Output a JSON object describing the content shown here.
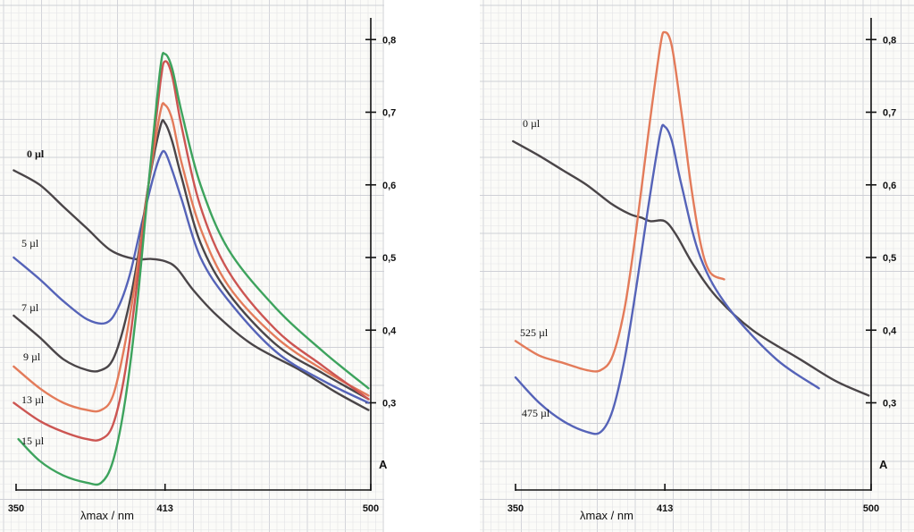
{
  "colors": {
    "dark": "#4a4548",
    "blue": "#5563b8",
    "red": "#cc5552",
    "orange": "#e37b5a",
    "green": "#3da35d"
  },
  "chart_data": [
    {
      "type": "line",
      "xlabel": "λmax / nm",
      "ylabel": "A",
      "xlim": [
        350,
        500
      ],
      "ylim": [
        0.18,
        0.82
      ],
      "x_ticks": [
        350,
        413,
        500
      ],
      "x_tick_labels": [
        "350",
        "413",
        "500"
      ],
      "y_ticks": [
        0.3,
        0.4,
        0.5,
        0.6,
        0.7,
        0.8
      ],
      "y_tick_labels": [
        "0,3",
        "0,4",
        "0,5",
        "0,6",
        "0,7",
        "0,8"
      ],
      "series": [
        {
          "name": "0 µl",
          "color_key": "dark",
          "bold": true,
          "x": [
            349,
            360,
            370,
            380,
            390,
            400,
            407,
            413,
            418,
            425,
            435,
            450,
            470,
            485,
            499
          ],
          "y": [
            0.62,
            0.6,
            0.57,
            0.54,
            0.51,
            0.498,
            0.498,
            0.495,
            0.485,
            0.455,
            0.42,
            0.38,
            0.345,
            0.315,
            0.29
          ]
        },
        {
          "name": "5 µl",
          "color_key": "blue",
          "x": [
            349,
            360,
            370,
            380,
            388,
            393,
            398,
            403,
            408,
            411,
            413,
            416,
            420,
            428,
            440,
            460,
            480,
            499
          ],
          "y": [
            0.5,
            0.47,
            0.44,
            0.415,
            0.41,
            0.43,
            0.475,
            0.545,
            0.61,
            0.64,
            0.645,
            0.62,
            0.58,
            0.5,
            0.44,
            0.37,
            0.33,
            0.3
          ]
        },
        {
          "name": "7 µl",
          "color_key": "dark",
          "x": [
            349,
            360,
            370,
            380,
            386,
            391,
            396,
            401,
            406,
            411,
            413,
            416,
            420,
            428,
            440,
            460,
            480,
            499
          ],
          "y": [
            0.42,
            0.39,
            0.36,
            0.345,
            0.345,
            0.36,
            0.41,
            0.49,
            0.6,
            0.68,
            0.685,
            0.66,
            0.61,
            0.52,
            0.45,
            0.38,
            0.34,
            0.305
          ]
        },
        {
          "name": "9 µl",
          "color_key": "orange",
          "x": [
            349,
            360,
            370,
            380,
            386,
            391,
            396,
            401,
            406,
            411,
            413,
            416,
            420,
            428,
            440,
            460,
            480,
            499
          ],
          "y": [
            0.35,
            0.32,
            0.3,
            0.29,
            0.29,
            0.31,
            0.38,
            0.48,
            0.6,
            0.7,
            0.71,
            0.69,
            0.63,
            0.54,
            0.46,
            0.39,
            0.345,
            0.31
          ]
        },
        {
          "name": "13 µl",
          "color_key": "red",
          "x": [
            349,
            360,
            370,
            380,
            386,
            391,
            396,
            401,
            406,
            411,
            413,
            416,
            420,
            428,
            440,
            460,
            480,
            499
          ],
          "y": [
            0.3,
            0.275,
            0.26,
            0.25,
            0.25,
            0.27,
            0.34,
            0.46,
            0.6,
            0.74,
            0.77,
            0.75,
            0.68,
            0.57,
            0.48,
            0.4,
            0.35,
            0.305
          ]
        },
        {
          "name": "15 µl",
          "color_key": "green",
          "x": [
            351,
            360,
            370,
            380,
            386,
            391,
            396,
            401,
            406,
            411,
            413,
            416,
            420,
            428,
            440,
            460,
            480,
            499
          ],
          "y": [
            0.25,
            0.22,
            0.2,
            0.19,
            0.19,
            0.22,
            0.3,
            0.43,
            0.6,
            0.76,
            0.78,
            0.76,
            0.7,
            0.6,
            0.51,
            0.43,
            0.37,
            0.32
          ]
        }
      ]
    },
    {
      "type": "line",
      "xlabel": "λmax / nm",
      "ylabel": "A",
      "xlim": [
        350,
        500
      ],
      "ylim": [
        0.18,
        0.82
      ],
      "x_ticks": [
        350,
        413,
        500
      ],
      "x_tick_labels": [
        "350",
        "413",
        "500"
      ],
      "y_ticks": [
        0.3,
        0.4,
        0.5,
        0.6,
        0.7,
        0.8
      ],
      "y_tick_labels": [
        "0,3",
        "0,4",
        "0,5",
        "0,6",
        "0,7",
        "0,8"
      ],
      "series": [
        {
          "name": "0 µl",
          "color_key": "dark",
          "x": [
            349,
            360,
            370,
            380,
            390,
            398,
            403,
            407,
            413,
            418,
            425,
            435,
            450,
            470,
            485,
            499
          ],
          "y": [
            0.66,
            0.64,
            0.62,
            0.6,
            0.575,
            0.56,
            0.555,
            0.55,
            0.55,
            0.53,
            0.49,
            0.445,
            0.4,
            0.36,
            0.33,
            0.31
          ]
        },
        {
          "name": "525 µl",
          "color_key": "orange",
          "x": [
            350,
            360,
            370,
            380,
            386,
            391,
            396,
            401,
            406,
            411,
            413,
            416,
            420,
            424,
            428,
            432,
            438
          ],
          "y": [
            0.385,
            0.365,
            0.355,
            0.345,
            0.345,
            0.365,
            0.43,
            0.54,
            0.67,
            0.79,
            0.81,
            0.79,
            0.7,
            0.6,
            0.52,
            0.48,
            0.47
          ]
        },
        {
          "name": "475 µl",
          "color_key": "blue",
          "x": [
            350,
            360,
            370,
            380,
            386,
            391,
            396,
            401,
            406,
            411,
            413,
            416,
            420,
            428,
            440,
            460,
            478
          ],
          "y": [
            0.335,
            0.3,
            0.275,
            0.26,
            0.26,
            0.29,
            0.36,
            0.46,
            0.57,
            0.67,
            0.68,
            0.66,
            0.6,
            0.5,
            0.43,
            0.36,
            0.32
          ]
        }
      ]
    }
  ]
}
